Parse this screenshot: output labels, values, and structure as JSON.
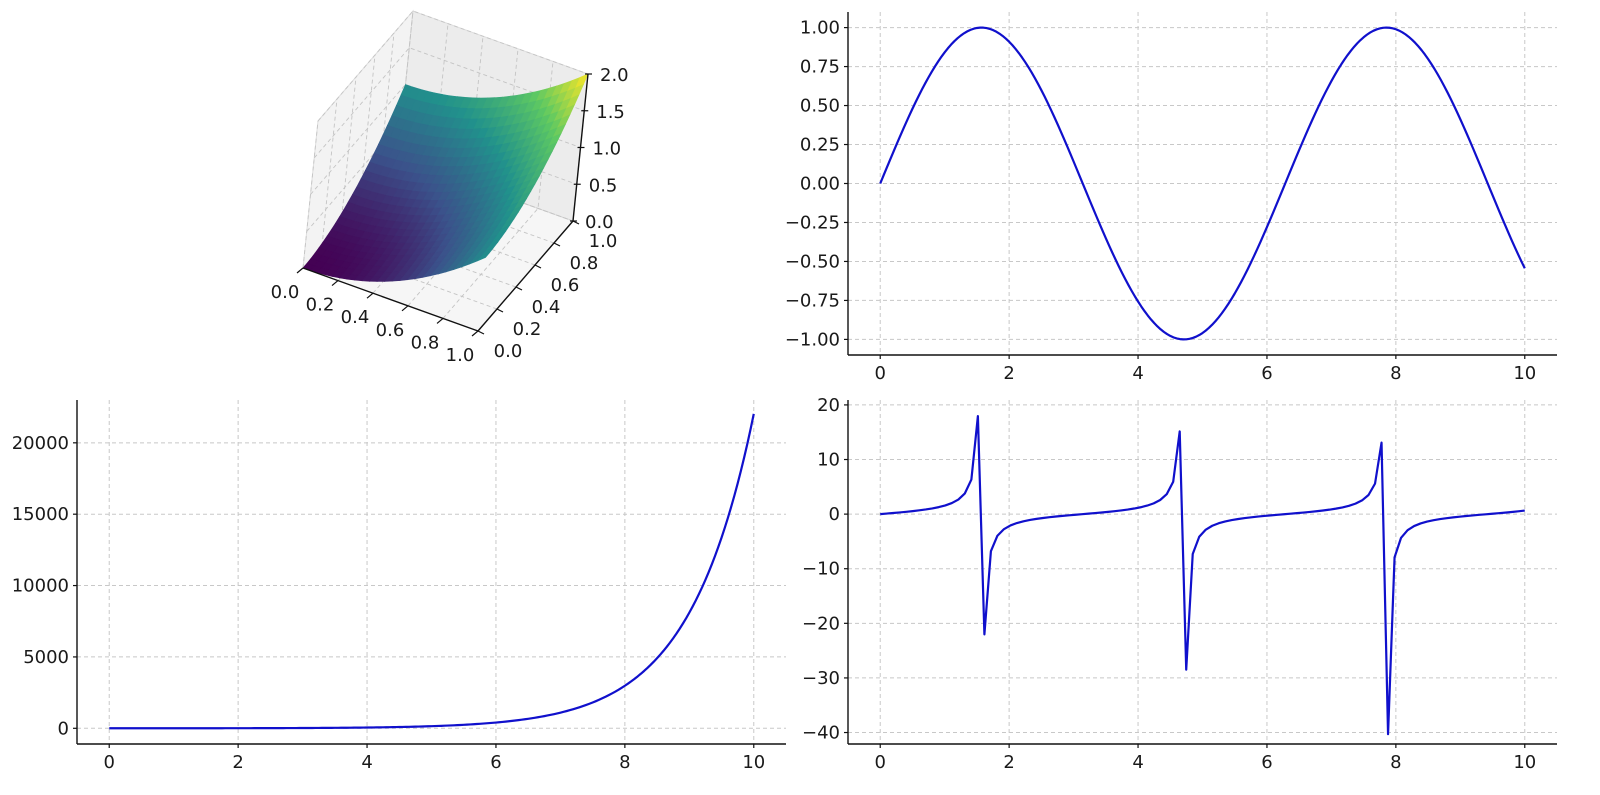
{
  "chart_data": [
    {
      "id": "surface",
      "type": "surface3d",
      "function": "z = x^2 + y^2",
      "x_ticks": [
        "0.0",
        "0.2",
        "0.4",
        "0.6",
        "0.8",
        "1.0"
      ],
      "y_ticks": [
        "0.0",
        "0.2",
        "0.4",
        "0.6",
        "0.8",
        "1.0"
      ],
      "z_ticks": [
        "0.0",
        "0.5",
        "1.0",
        "1.5",
        "2.0"
      ],
      "xlim": [
        0,
        1
      ],
      "ylim": [
        0,
        1
      ],
      "zlim": [
        0,
        2
      ],
      "colormap": [
        "#440154",
        "#3b528b",
        "#21918c",
        "#5ec962",
        "#fde725"
      ],
      "grid": true
    },
    {
      "id": "sine",
      "type": "line",
      "function": "y = sin(x)",
      "x_range": [
        0,
        10
      ],
      "samples": 201,
      "xlim": [
        -0.5,
        10.5
      ],
      "ylim": [
        -1.1,
        1.1
      ],
      "x_ticks": [
        0,
        2,
        4,
        6,
        8,
        10
      ],
      "y_ticks": [
        -1.0,
        -0.75,
        -0.5,
        -0.25,
        0.0,
        0.25,
        0.5,
        0.75,
        1.0
      ],
      "y_tick_labels": [
        "−1.00",
        "−0.75",
        "−0.50",
        "−0.25",
        "0.00",
        "0.25",
        "0.50",
        "0.75",
        "1.00"
      ],
      "color": "#1010cc",
      "grid": true
    },
    {
      "id": "exp",
      "type": "line",
      "function": "y = exp(x)",
      "x_range": [
        0,
        10
      ],
      "samples": 201,
      "xlim": [
        -0.5,
        10.5
      ],
      "ylim": [
        -1100,
        23000
      ],
      "x_ticks": [
        0,
        2,
        4,
        6,
        8,
        10
      ],
      "y_ticks": [
        0,
        5000,
        10000,
        15000,
        20000
      ],
      "y_tick_labels": [
        "0",
        "5000",
        "10000",
        "15000",
        "20000"
      ],
      "color": "#1010cc",
      "grid": true
    },
    {
      "id": "tan",
      "type": "line",
      "function": "y = tan(x)",
      "x_range": [
        0,
        10
      ],
      "samples": 100,
      "xlim": [
        -0.5,
        10.5
      ],
      "ylim": [
        -42.1,
        20.9
      ],
      "x_ticks": [
        0,
        2,
        4,
        6,
        8,
        10
      ],
      "y_ticks": [
        -40,
        -30,
        -20,
        -10,
        0,
        10,
        20
      ],
      "y_tick_labels": [
        "−40",
        "−30",
        "−20",
        "−10",
        "0",
        "10",
        "20"
      ],
      "color": "#1010cc",
      "grid": true
    }
  ]
}
